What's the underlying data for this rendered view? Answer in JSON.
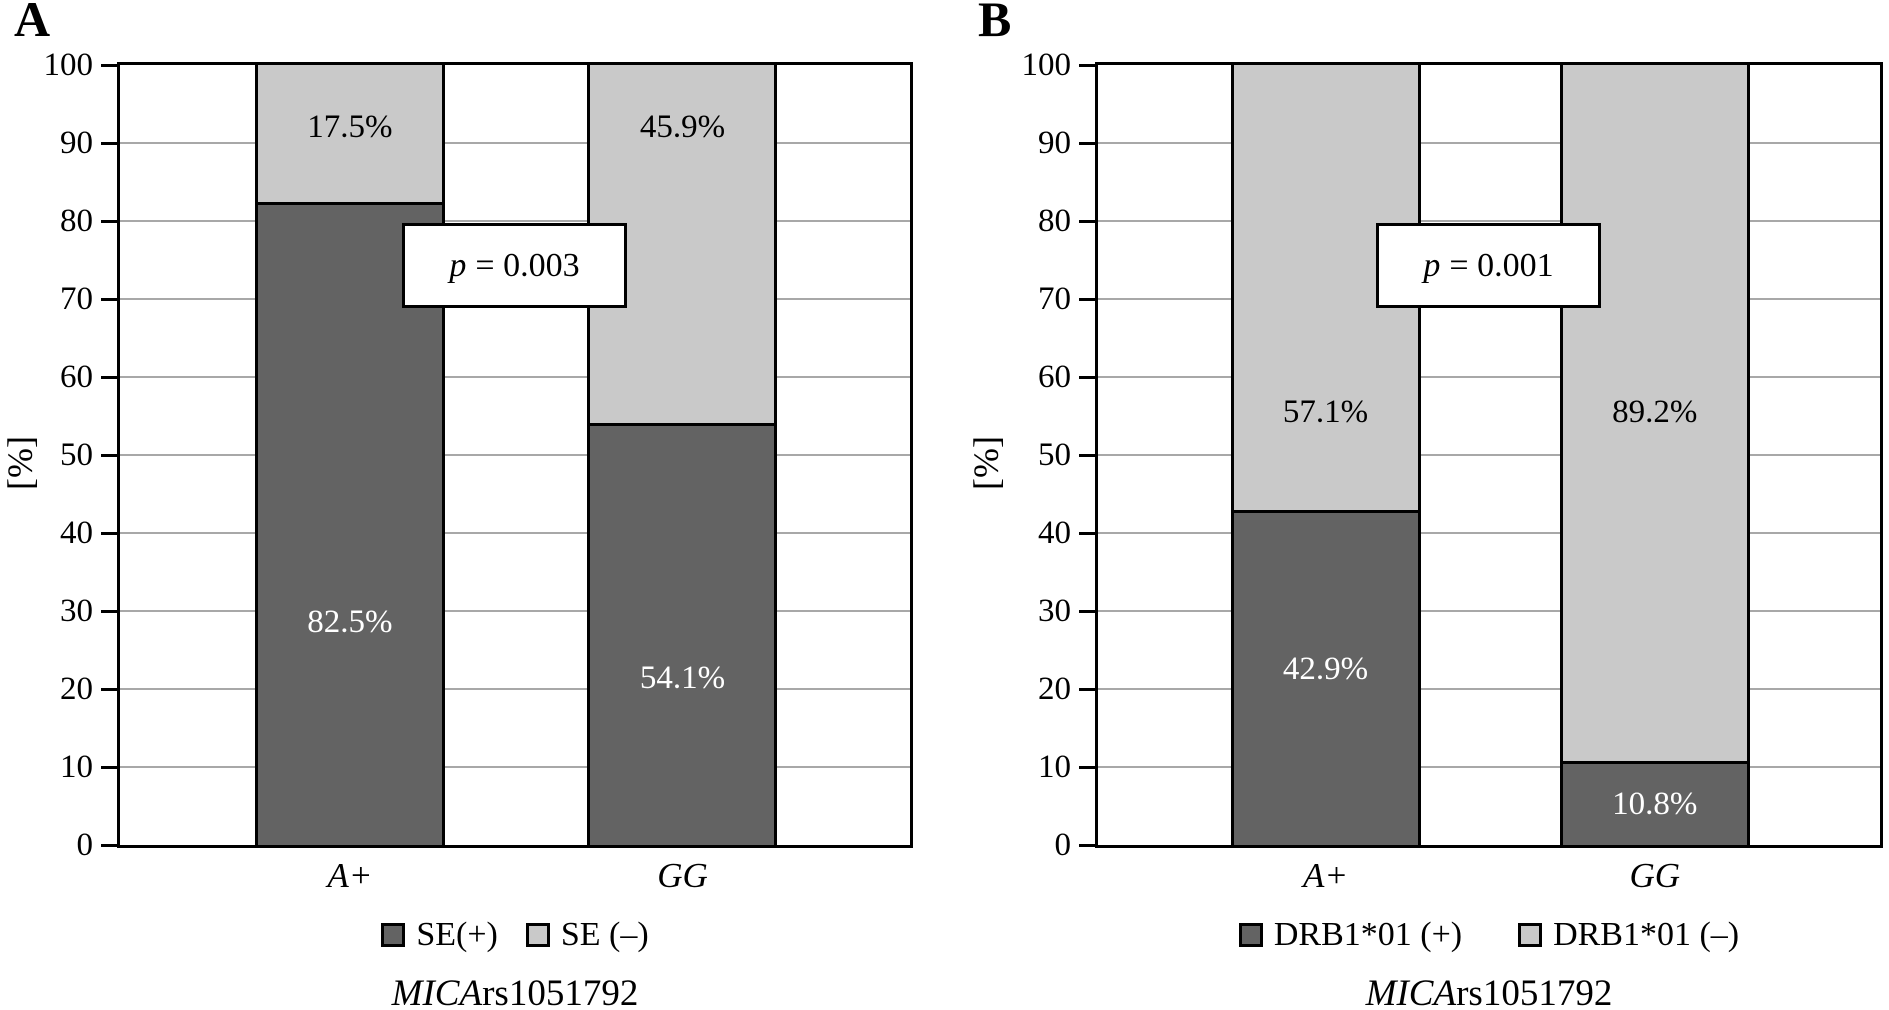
{
  "style": {
    "background": "#ffffff",
    "dark": "#636363",
    "light": "#c9c9c9",
    "grid": "#a8a8a8",
    "border": "#000000",
    "label_on_dark": "#ffffff",
    "label_on_light": "#000000"
  },
  "chart_data": [
    {
      "type": "bar",
      "stacked": true,
      "panel_letter": "A",
      "ylabel": "[%]",
      "ylim": [
        0,
        100
      ],
      "yticks": [
        0,
        10,
        20,
        30,
        40,
        50,
        60,
        70,
        80,
        90,
        100
      ],
      "grid": true,
      "categories": [
        "A+",
        "GG"
      ],
      "series": [
        {
          "name": "SE(+)",
          "shade": "dark"
        },
        {
          "name": "SE (–)",
          "shade": "light"
        }
      ],
      "bars": [
        {
          "category": "A+",
          "segments": [
            {
              "series": "SE(+)",
              "shade": "dark",
              "value": 82.5,
              "label": "82.5%",
              "label_y": 28.6
            },
            {
              "series": "SE (–)",
              "shade": "light",
              "value": 17.5,
              "label": "17.5%",
              "label_y": 92.0
            }
          ]
        },
        {
          "category": "GG",
          "segments": [
            {
              "series": "SE(+)",
              "shade": "dark",
              "value": 54.1,
              "label": "54.1%",
              "label_y": 21.4
            },
            {
              "series": "SE (–)",
              "shade": "light",
              "value": 45.9,
              "label": "45.9%",
              "label_y": 92.0
            }
          ]
        }
      ],
      "annotation": {
        "var": "p",
        "rest": "= 0.003"
      },
      "xlabel_italic": "MICA",
      "xlabel_regular": "rs1051792",
      "legend_position": "bottom"
    },
    {
      "type": "bar",
      "stacked": true,
      "panel_letter": "B",
      "ylabel": "[%]",
      "ylim": [
        0,
        100
      ],
      "yticks": [
        0,
        10,
        20,
        30,
        40,
        50,
        60,
        70,
        80,
        90,
        100
      ],
      "grid": true,
      "categories": [
        "A+",
        "GG"
      ],
      "series": [
        {
          "name": "DRB1*01 (+)",
          "shade": "dark"
        },
        {
          "name": "DRB1*01 (–)",
          "shade": "light"
        }
      ],
      "bars": [
        {
          "category": "A+",
          "segments": [
            {
              "series": "DRB1*01 (+)",
              "shade": "dark",
              "value": 42.9,
              "label": "42.9%",
              "label_y": 22.6
            },
            {
              "series": "DRB1*01 (–)",
              "shade": "light",
              "value": 57.1,
              "label": "57.1%",
              "label_y": 55.5
            }
          ]
        },
        {
          "category": "GG",
          "segments": [
            {
              "series": "DRB1*01 (+)",
              "shade": "dark",
              "value": 10.8,
              "label": "10.8%",
              "label_y": 5.2
            },
            {
              "series": "DRB1*01 (–)",
              "shade": "light",
              "value": 89.2,
              "label": "89.2%",
              "label_y": 55.5
            }
          ]
        }
      ],
      "annotation": {
        "var": "p",
        "rest": "= 0.001"
      },
      "xlabel_italic": "MICA",
      "xlabel_regular": "rs1051792",
      "legend_position": "bottom"
    }
  ]
}
